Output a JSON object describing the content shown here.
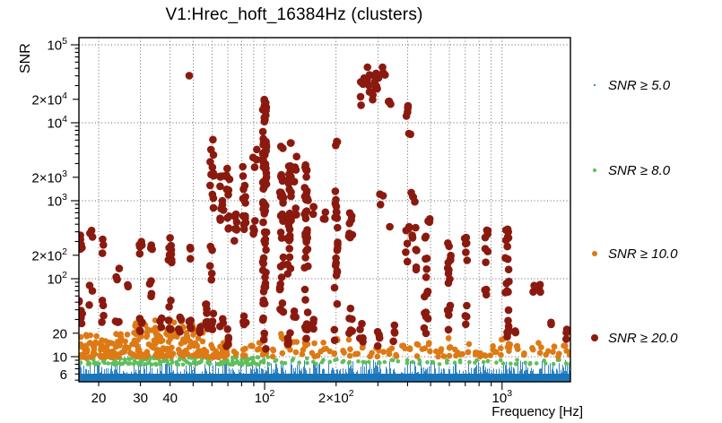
{
  "title": "V1:Hrec_hoft_16384Hz (clusters)",
  "axes": {
    "x_label": "Frequency [Hz]",
    "y_label": "SNR",
    "x_range_hz": [
      16.5,
      1943
    ],
    "y_range_snr": [
      4.8,
      124000
    ],
    "x_ticks": [
      {
        "v": 20,
        "t": "20"
      },
      {
        "v": 30,
        "t": "30"
      },
      {
        "v": 40,
        "t": "40"
      },
      {
        "v": 100,
        "t": "10",
        "s": "2"
      },
      {
        "v": 200,
        "t": "2×10",
        "s": "2"
      },
      {
        "v": 1000,
        "t": "10",
        "s": "3"
      }
    ],
    "y_ticks": [
      {
        "v": 6,
        "t": "6"
      },
      {
        "v": 10,
        "t": "10"
      },
      {
        "v": 20,
        "t": "20"
      },
      {
        "v": 100,
        "t": "10",
        "s": "2"
      },
      {
        "v": 200,
        "t": "2×10",
        "s": "2"
      },
      {
        "v": 1000,
        "t": "10",
        "s": "3"
      },
      {
        "v": 2000,
        "t": "2×10",
        "s": "3"
      },
      {
        "v": 10000,
        "t": "10",
        "s": "4"
      },
      {
        "v": 20000,
        "t": "2×10",
        "s": "4"
      },
      {
        "v": 100000,
        "t": "10",
        "s": "5"
      }
    ]
  },
  "chart_data": {
    "type": "scatter",
    "title": "V1:Hrec_hoft_16384Hz (clusters)",
    "xlabel": "Frequency [Hz]",
    "ylabel": "SNR",
    "xscale": "log",
    "yscale": "log",
    "xlim": [
      16.5,
      1943
    ],
    "ylim": [
      4.8,
      124000
    ],
    "grid": {
      "style": "dotted",
      "x_lines": [
        20,
        30,
        40,
        50,
        60,
        70,
        80,
        90,
        100,
        200,
        300,
        400,
        500,
        600,
        700,
        800,
        900,
        1000
      ],
      "y_lines": [
        10,
        100,
        1000,
        10000,
        100000
      ]
    },
    "legend_position": "right-outside",
    "series": [
      {
        "name": "SNR ≥ 5.0",
        "color": "#1B76BB",
        "marker_px": 1.6,
        "style": "dense-vertical-band",
        "band_freq_hz": [
          16.5,
          1943
        ],
        "band_snr": [
          4.8,
          9.2
        ]
      },
      {
        "name": "SNR ≥ 8.0",
        "color": "#5FBE5B",
        "marker_px": 4.6,
        "bands": [
          [
            16.5,
            105,
            7.9,
            9.9,
            160
          ]
        ],
        "columns": [
          [
            112,
            8,
            9.5,
            2
          ],
          [
            120,
            8,
            9,
            2
          ],
          [
            130,
            8,
            9.5,
            2
          ],
          [
            140,
            8,
            9,
            1
          ],
          [
            152,
            8,
            9.5,
            2
          ],
          [
            163,
            8,
            9,
            2
          ],
          [
            175,
            8,
            9.5,
            2
          ],
          [
            188,
            8,
            9,
            1
          ],
          [
            200,
            8,
            9.5,
            2
          ],
          [
            213,
            8,
            9,
            2
          ],
          [
            228,
            8,
            9.5,
            2
          ],
          [
            245,
            8,
            9,
            1
          ],
          [
            262,
            8,
            9.5,
            2
          ],
          [
            280,
            8,
            9,
            1
          ],
          [
            300,
            8,
            9.5,
            2
          ],
          [
            320,
            8,
            9,
            1
          ],
          [
            343,
            8,
            9.5,
            2
          ],
          [
            368,
            8,
            9,
            1
          ],
          [
            395,
            8,
            9.5,
            2
          ],
          [
            420,
            8,
            9,
            1
          ],
          [
            450,
            8,
            9.5,
            2
          ],
          [
            480,
            8,
            9,
            1
          ],
          [
            515,
            8,
            9.5,
            2
          ],
          [
            550,
            8,
            9,
            1
          ],
          [
            590,
            8,
            9.5,
            2
          ],
          [
            630,
            8,
            9,
            1
          ],
          [
            675,
            8,
            9.5,
            2
          ],
          [
            720,
            8,
            9,
            1
          ],
          [
            770,
            8,
            9.5,
            2
          ],
          [
            825,
            8,
            9,
            1
          ],
          [
            880,
            8,
            9.5,
            2
          ],
          [
            940,
            8,
            9,
            1
          ],
          [
            1000,
            8,
            9.5,
            2
          ],
          [
            1070,
            8,
            9,
            1
          ],
          [
            1150,
            8,
            9.5,
            2
          ],
          [
            1230,
            8,
            9,
            1
          ],
          [
            1320,
            8,
            9.5,
            2
          ],
          [
            1410,
            8,
            9,
            1
          ],
          [
            1510,
            8,
            9.5,
            2
          ],
          [
            1620,
            8,
            9,
            1
          ],
          [
            1730,
            8,
            9.5,
            2
          ],
          [
            1850,
            8,
            9,
            1
          ],
          [
            1950,
            8,
            9.3,
            2
          ]
        ]
      },
      {
        "name": "SNR ≥ 10.0",
        "color": "#DD7A15",
        "marker_px": 6.6,
        "bands": [
          [
            16.5,
            28,
            9.8,
            20,
            90
          ],
          [
            28,
            55,
            10,
            27,
            110
          ],
          [
            30,
            48,
            18,
            30,
            22
          ],
          [
            55,
            68,
            9.8,
            16,
            25
          ]
        ],
        "columns": [
          [
            70,
            10,
            18,
            4
          ],
          [
            75,
            10,
            14,
            3
          ],
          [
            82,
            10,
            20,
            5
          ],
          [
            88,
            10,
            14,
            3
          ],
          [
            95,
            11,
            19,
            4
          ],
          [
            100,
            10,
            20,
            6
          ],
          [
            108,
            10,
            15,
            3
          ],
          [
            118,
            10,
            20,
            5
          ],
          [
            127,
            10,
            18,
            4
          ],
          [
            135,
            10,
            16,
            3
          ],
          [
            143,
            10,
            13,
            2
          ],
          [
            150,
            10,
            20,
            5
          ],
          [
            160,
            10,
            15,
            3
          ],
          [
            170,
            10,
            13,
            2
          ],
          [
            180,
            10,
            16,
            3
          ],
          [
            190,
            11,
            13,
            1
          ],
          [
            200,
            10,
            19,
            4
          ],
          [
            215,
            10,
            14,
            2
          ],
          [
            230,
            10,
            17,
            3
          ],
          [
            245,
            10,
            12,
            2
          ],
          [
            260,
            10,
            15,
            3
          ],
          [
            280,
            10,
            13,
            2
          ],
          [
            300,
            10,
            17,
            3
          ],
          [
            320,
            10,
            13,
            2
          ],
          [
            340,
            10,
            15,
            3
          ],
          [
            360,
            10,
            12,
            2
          ],
          [
            385,
            10,
            16,
            3
          ],
          [
            410,
            10,
            13,
            2
          ],
          [
            440,
            10,
            15,
            3
          ],
          [
            470,
            10,
            13,
            2
          ],
          [
            500,
            10,
            16,
            3
          ],
          [
            530,
            10,
            12,
            2
          ],
          [
            560,
            10,
            15,
            3
          ],
          [
            600,
            10,
            18,
            4
          ],
          [
            640,
            10,
            16,
            3
          ],
          [
            680,
            10,
            12,
            2
          ],
          [
            720,
            10,
            15,
            3
          ],
          [
            760,
            10,
            12,
            2
          ],
          [
            800,
            10,
            16,
            3
          ],
          [
            850,
            10,
            13,
            2
          ],
          [
            900,
            10,
            15,
            3
          ],
          [
            950,
            10,
            12,
            2
          ],
          [
            1000,
            10,
            17,
            4
          ],
          [
            1070,
            10,
            20,
            5
          ],
          [
            1150,
            10,
            15,
            3
          ],
          [
            1250,
            10,
            12,
            2
          ],
          [
            1350,
            10,
            14,
            2
          ],
          [
            1450,
            10,
            16,
            3
          ],
          [
            1550,
            10,
            12,
            2
          ],
          [
            1650,
            10,
            14,
            3
          ],
          [
            1750,
            10,
            12,
            2
          ],
          [
            1850,
            10,
            15,
            3
          ],
          [
            1950,
            10,
            13,
            2
          ]
        ]
      },
      {
        "name": "SNR ≥ 20.0",
        "color": "#8A1A0F",
        "marker_px": 8.6,
        "columns": [
          [
            16.8,
            150,
            420,
            5
          ],
          [
            16.8,
            22,
            70,
            6
          ],
          [
            18.5,
            300,
            520,
            3
          ],
          [
            18.5,
            45,
            90,
            3
          ],
          [
            21,
            26,
            60,
            4
          ],
          [
            21,
            150,
            330,
            3
          ],
          [
            24,
            90,
            150,
            3
          ],
          [
            24,
            24,
            40,
            3
          ],
          [
            27,
            60,
            90,
            2
          ],
          [
            30,
            160,
            310,
            5
          ],
          [
            30,
            20,
            34,
            5
          ],
          [
            33,
            210,
            300,
            3
          ],
          [
            33,
            55,
            95,
            4
          ],
          [
            36.5,
            21,
            32,
            3
          ],
          [
            40,
            160,
            500,
            9
          ],
          [
            40,
            20,
            62,
            6
          ],
          [
            44,
            20,
            34,
            4
          ],
          [
            48.5,
            40000,
            43000,
            1
          ],
          [
            48.5,
            150,
            260,
            3
          ],
          [
            48.5,
            20,
            30,
            4
          ],
          [
            53,
            20,
            28,
            3
          ],
          [
            57,
            22,
            48,
            8
          ],
          [
            60,
            480,
            6500,
            12
          ],
          [
            60,
            95,
            300,
            5
          ],
          [
            60,
            20,
            40,
            4
          ],
          [
            66,
            380,
            2600,
            10
          ],
          [
            66,
            20,
            35,
            3
          ],
          [
            70,
            430,
            2900,
            12
          ],
          [
            70,
            11,
            25,
            5
          ],
          [
            75,
            300,
            1500,
            8
          ],
          [
            82,
            430,
            2900,
            14
          ],
          [
            82,
            18,
            42,
            4
          ],
          [
            91,
            2600,
            5200,
            4
          ],
          [
            91,
            300,
            700,
            4
          ],
          [
            100,
            280,
            21000,
            60
          ],
          [
            100,
            11,
            260,
            20
          ],
          [
            118,
            4700,
            5700,
            2
          ],
          [
            118,
            330,
            3100,
            20
          ],
          [
            118,
            18,
            300,
            12
          ],
          [
            127,
            290,
            3000,
            22
          ],
          [
            127,
            5000,
            5800,
            2
          ],
          [
            127,
            14,
            260,
            10
          ],
          [
            135,
            1500,
            3700,
            4
          ],
          [
            135,
            480,
            860,
            3
          ],
          [
            135,
            20,
            40,
            3
          ],
          [
            150,
            290,
            3100,
            26
          ],
          [
            150,
            14,
            260,
            14
          ],
          [
            160,
            490,
            840,
            3
          ],
          [
            160,
            18,
            30,
            3
          ],
          [
            180,
            490,
            830,
            3
          ],
          [
            200,
            11,
            1350,
            24
          ],
          [
            200,
            4800,
            5800,
            3
          ],
          [
            230,
            330,
            1300,
            8
          ],
          [
            230,
            16,
            110,
            6
          ],
          [
            255,
            12,
            30,
            5
          ],
          [
            258,
            15000,
            42000,
            6
          ],
          [
            272,
            21000,
            56000,
            6
          ],
          [
            288,
            17000,
            64000,
            5
          ],
          [
            300,
            26000,
            46000,
            4
          ],
          [
            318,
            40000,
            54000,
            3
          ],
          [
            338,
            15000,
            23000,
            3
          ],
          [
            300,
            12,
            22,
            4
          ],
          [
            310,
            860,
            1300,
            3
          ],
          [
            340,
            420,
            480,
            1
          ],
          [
            350,
            14,
            35,
            4
          ],
          [
            400,
            11000,
            16500,
            4
          ],
          [
            400,
            110,
            500,
            6
          ],
          [
            405,
            6800,
            8400,
            2
          ],
          [
            415,
            850,
            1300,
            3
          ],
          [
            425,
            300,
            1000,
            4
          ],
          [
            430,
            120,
            160,
            2
          ],
          [
            440,
            215,
            260,
            2
          ],
          [
            470,
            14,
            40,
            3
          ],
          [
            480,
            25,
            350,
            14
          ],
          [
            490,
            520,
            1300,
            3
          ],
          [
            600,
            20,
            400,
            16
          ],
          [
            700,
            145,
            440,
            6
          ],
          [
            700,
            25,
            60,
            4
          ],
          [
            860,
            150,
            580,
            7
          ],
          [
            860,
            60,
            110,
            3
          ],
          [
            1050,
            17,
            400,
            20
          ],
          [
            1050,
            420,
            470,
            2
          ],
          [
            1150,
            18,
            28,
            2
          ],
          [
            1350,
            65,
            85,
            2
          ],
          [
            1450,
            55,
            92,
            3
          ],
          [
            1600,
            22,
            30,
            2
          ],
          [
            1850,
            15,
            25,
            3
          ]
        ]
      }
    ]
  }
}
